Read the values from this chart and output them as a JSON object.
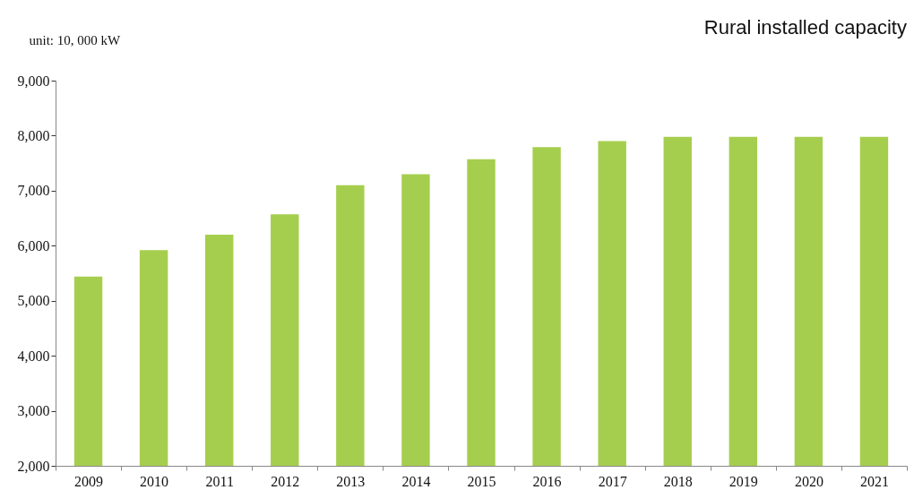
{
  "chart_data": {
    "type": "bar",
    "title": "Rural installed capacity",
    "ylabel": "unit: 10, 000 kW",
    "categories": [
      "2009",
      "2010",
      "2011",
      "2012",
      "2013",
      "2014",
      "2015",
      "2016",
      "2017",
      "2018",
      "2019",
      "2020",
      "2021"
    ],
    "values": [
      5440,
      5920,
      6200,
      6570,
      7100,
      7300,
      7570,
      7790,
      7900,
      7980,
      7980,
      7980,
      7980
    ],
    "color": "#a6ce4e",
    "ylim": [
      2000,
      9000
    ],
    "yticks": [
      {
        "value": 2000,
        "label": "2,000"
      },
      {
        "value": 3000,
        "label": "3,000"
      },
      {
        "value": 4000,
        "label": "4,000"
      },
      {
        "value": 5000,
        "label": "5,000"
      },
      {
        "value": 6000,
        "label": "6,000"
      },
      {
        "value": 7000,
        "label": "7,000"
      },
      {
        "value": 8000,
        "label": "8,000"
      },
      {
        "value": 9000,
        "label": "9,000"
      }
    ],
    "grid": false
  }
}
